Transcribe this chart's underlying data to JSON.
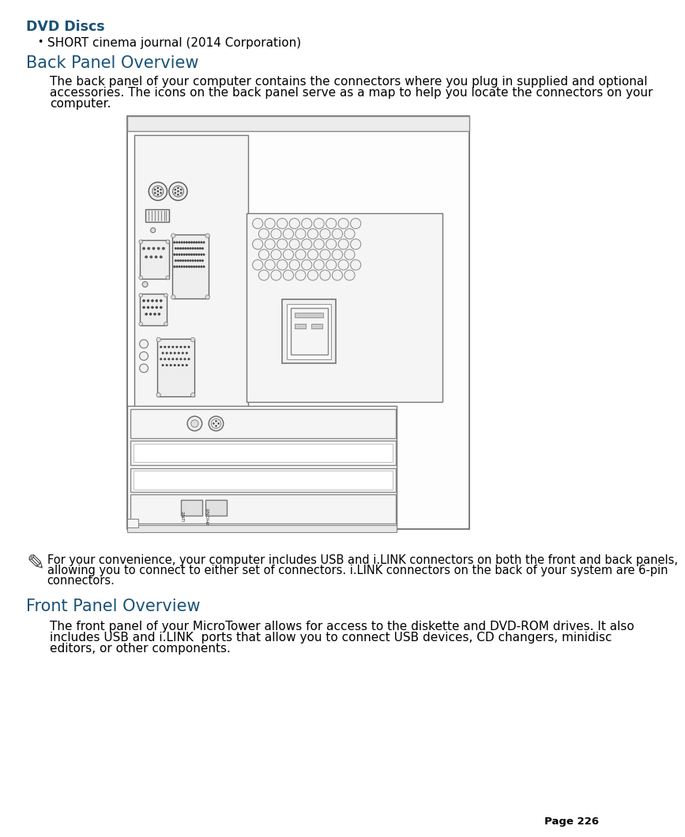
{
  "title_dvd": "DVD Discs",
  "bullet_item": "SHORT cinema journal (2014 Corporation)",
  "heading1": "Back Panel Overview",
  "para1_line1": "The back panel of your computer contains the connectors where you plug in supplied and optional",
  "para1_line2": "accessories. The icons on the back panel serve as a map to help you locate the connectors on your",
  "para1_line3": "computer.",
  "heading2": "Front Panel Overview",
  "para2_line1": "The front panel of your MicroTower allows for access to the diskette and DVD-ROM drives. It also",
  "para2_line2": "includes USB and i.LINK  ports that allow you to connect USB devices, CD changers, minidisc",
  "para2_line3": "editors, or other components.",
  "note_text": "For your convenience, your computer includes USB and i.LINK connectors on both the front and back panels,\nallowing you to connect to either set of connectors. i.LINK connectors on the back of your system are 6-pin\nconnectors.",
  "page_label": "Page 226",
  "heading_color": "#1a5276",
  "title_color": "#1a5276",
  "text_color": "#000000",
  "bg_color": "#ffffff",
  "body_font_size": 11.0,
  "heading_font_size": 15,
  "title_font_size": 12.5
}
